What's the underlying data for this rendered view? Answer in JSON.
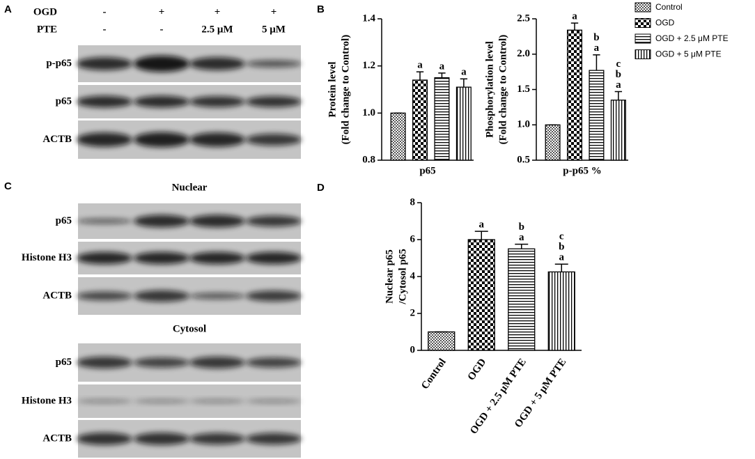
{
  "blot_a": {
    "letter": "A",
    "rows": [
      {
        "label": "OGD",
        "cells": [
          "-",
          "+",
          "+",
          "+"
        ]
      },
      {
        "label": "PTE",
        "cells": [
          "-",
          "-",
          "2.5 μM",
          "5 μM"
        ]
      }
    ],
    "bands": [
      "p-p65",
      "p65",
      "ACTB"
    ]
  },
  "blot_c": {
    "letter": "C",
    "sections": [
      {
        "title": "Nuclear",
        "bands": [
          "p65",
          "Histone H3",
          "ACTB"
        ]
      },
      {
        "title": "Cytosol",
        "bands": [
          "p65",
          "Histone H3",
          "ACTB"
        ]
      }
    ]
  },
  "chart_data": [
    {
      "type": "bar",
      "label": "B",
      "y_label": [
        "Protein level",
        "(Fold change to Control)"
      ],
      "categories": [
        "p65"
      ],
      "series": [
        {
          "name": "Control",
          "pattern": "checker-fine",
          "values": [
            1.0
          ],
          "errors": [
            0
          ]
        },
        {
          "name": "OGD",
          "pattern": "checker",
          "values": [
            1.14
          ],
          "errors": [
            0.035
          ],
          "sig": [
            [
              "a"
            ]
          ]
        },
        {
          "name": "OGD + 2.5 μM PTE",
          "pattern": "hlines",
          "values": [
            1.15
          ],
          "errors": [
            0.02
          ],
          "sig": [
            [
              "a"
            ]
          ]
        },
        {
          "name": "OGD + 5 μM PTE",
          "pattern": "vlines",
          "values": [
            1.11
          ],
          "errors": [
            0.035
          ],
          "sig": [
            [
              "a"
            ]
          ]
        }
      ],
      "ylim": [
        0.8,
        1.4
      ],
      "yticks": [
        0.8,
        {
          "value": 1.0,
          "label": "1.0"
        },
        1.2,
        1.4
      ]
    },
    {
      "type": "bar",
      "y_label": [
        "Phosphorylation level",
        "(Fold change to Control)"
      ],
      "categories": [
        "p-p65 %"
      ],
      "series": [
        {
          "name": "Control",
          "pattern": "checker-fine",
          "values": [
            1.0
          ],
          "errors": [
            0
          ]
        },
        {
          "name": "OGD",
          "pattern": "checker",
          "values": [
            2.34
          ],
          "errors": [
            0.1
          ],
          "sig": [
            [
              "a"
            ]
          ]
        },
        {
          "name": "OGD + 2.5 μM PTE",
          "pattern": "hlines",
          "values": [
            1.77
          ],
          "errors": [
            0.22
          ],
          "sig": [
            [
              "b",
              "a"
            ]
          ]
        },
        {
          "name": "OGD + 5 μM PTE",
          "pattern": "vlines",
          "values": [
            1.35
          ],
          "errors": [
            0.12
          ],
          "sig": [
            [
              "c",
              "b",
              "a"
            ]
          ]
        }
      ],
      "ylim": [
        0.5,
        2.5
      ],
      "yticks": [
        0.5,
        {
          "value": 1.0,
          "label": "1.0"
        },
        1.5,
        {
          "value": 2.0,
          "label": "2.0"
        },
        2.5
      ],
      "legend": "outside-right"
    },
    {
      "type": "bar",
      "label": "D",
      "y_label": [
        "Nuclear p65",
        "/Cytosol p65"
      ],
      "categories": [
        "Control",
        "OGD",
        "OGD + 2.5 μM PTE",
        "OGD + 5 μM PTE"
      ],
      "values": [
        1.0,
        6.0,
        5.5,
        4.25
      ],
      "errors": [
        0,
        0.45,
        0.25,
        0.42
      ],
      "patterns": [
        "checker-fine",
        "checker",
        "hlines",
        "vlines"
      ],
      "sig": [
        [],
        [
          "a"
        ],
        [
          "b",
          "a"
        ],
        [
          "c",
          "b",
          "a"
        ]
      ],
      "ylim": [
        0,
        8
      ],
      "yticks": [
        0,
        2,
        4,
        6,
        8
      ]
    }
  ]
}
